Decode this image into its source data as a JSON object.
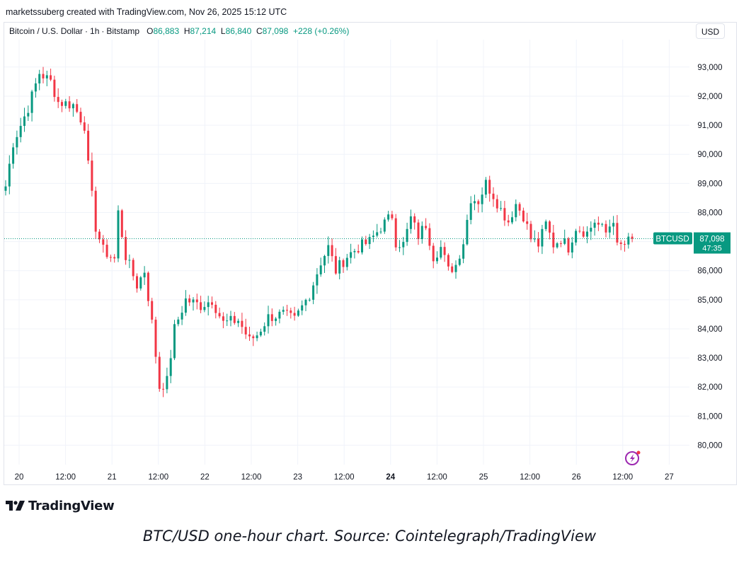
{
  "header": {
    "text": "marketssuberg created with TradingView.com, Nov 26, 2025 15:12 UTC"
  },
  "legend": {
    "symbol": "Bitcoin / U.S. Dollar",
    "interval": "1h",
    "exchange": "Bitstamp",
    "o_label": "O",
    "o_value": "86,883",
    "h_label": "H",
    "h_value": "87,214",
    "l_label": "L",
    "l_value": "86,840",
    "c_label": "C",
    "c_value": "87,098",
    "change": "+228 (+0.26%)"
  },
  "currency_button": "USD",
  "price_tag": {
    "symbol": "BTCUSD",
    "price": "87,098",
    "countdown": "47:35"
  },
  "logo_text": "TradingView",
  "caption": "BTC/USD one-hour chart. Source: Cointelegraph/TradingView",
  "colors": {
    "up": "#089981",
    "down": "#f23645",
    "grid": "#f0f3fa",
    "text": "#131722"
  },
  "chart_data": {
    "type": "candlestick",
    "interval": "1h",
    "y_ticks": [
      80000,
      81000,
      82000,
      83000,
      84000,
      85000,
      86000,
      87000,
      88000,
      89000,
      90000,
      91000,
      92000,
      93000
    ],
    "y_tick_labels": [
      "80,000",
      "81,000",
      "82,000",
      "83,000",
      "84,000",
      "85,000",
      "86,000",
      "87,000",
      "88,000",
      "89,000",
      "90,000",
      "91,000",
      "92,000",
      "93,000"
    ],
    "x_ticks": [
      {
        "label": "20",
        "bold": false
      },
      {
        "label": "12:00",
        "bold": false
      },
      {
        "label": "21",
        "bold": false
      },
      {
        "label": "12:00",
        "bold": false
      },
      {
        "label": "22",
        "bold": false
      },
      {
        "label": "12:00",
        "bold": false
      },
      {
        "label": "23",
        "bold": false
      },
      {
        "label": "12:00",
        "bold": false
      },
      {
        "label": "24",
        "bold": true
      },
      {
        "label": "12:00",
        "bold": false
      },
      {
        "label": "25",
        "bold": false
      },
      {
        "label": "12:00",
        "bold": false
      },
      {
        "label": "26",
        "bold": false
      },
      {
        "label": "12:00",
        "bold": false
      },
      {
        "label": "27",
        "bold": false
      }
    ],
    "last_price": 87098,
    "close_path": [
      [
        0,
        88900
      ],
      [
        2,
        90400
      ],
      [
        6,
        91600
      ],
      [
        9,
        92800
      ],
      [
        12,
        92500
      ],
      [
        14,
        91800
      ],
      [
        18,
        91700
      ],
      [
        21,
        91000
      ],
      [
        22,
        89600
      ],
      [
        24,
        87500
      ],
      [
        26,
        86700
      ],
      [
        29,
        86400
      ],
      [
        30,
        88000
      ],
      [
        32,
        86500
      ],
      [
        35,
        85500
      ],
      [
        37,
        86000
      ],
      [
        39,
        84200
      ],
      [
        41,
        82000
      ],
      [
        43,
        82200
      ],
      [
        45,
        84000
      ],
      [
        48,
        85000
      ],
      [
        52,
        84800
      ],
      [
        55,
        85000
      ],
      [
        58,
        84200
      ],
      [
        62,
        84300
      ],
      [
        65,
        83600
      ],
      [
        67,
        83800
      ],
      [
        70,
        84400
      ],
      [
        74,
        84500
      ],
      [
        77,
        84300
      ],
      [
        81,
        85200
      ],
      [
        84,
        86300
      ],
      [
        86,
        86800
      ],
      [
        88,
        86000
      ],
      [
        91,
        86500
      ],
      [
        94,
        86800
      ],
      [
        97,
        87000
      ],
      [
        100,
        87500
      ],
      [
        103,
        87900
      ],
      [
        104,
        87000
      ],
      [
        106,
        86900
      ],
      [
        108,
        87800
      ],
      [
        110,
        87200
      ],
      [
        112,
        87600
      ],
      [
        114,
        86500
      ],
      [
        116,
        86800
      ],
      [
        118,
        86000
      ],
      [
        120,
        86200
      ],
      [
        122,
        87000
      ],
      [
        124,
        88500
      ],
      [
        126,
        88400
      ],
      [
        128,
        89000
      ],
      [
        130,
        88600
      ],
      [
        132,
        88100
      ],
      [
        134,
        87700
      ],
      [
        136,
        88300
      ],
      [
        138,
        87900
      ],
      [
        140,
        87100
      ],
      [
        142,
        86900
      ],
      [
        144,
        87600
      ],
      [
        146,
        86900
      ],
      [
        148,
        87100
      ],
      [
        150,
        86800
      ],
      [
        152,
        87500
      ],
      [
        155,
        87300
      ],
      [
        157,
        87700
      ],
      [
        160,
        87300
      ],
      [
        162,
        87800
      ],
      [
        163,
        86800
      ],
      [
        165,
        86900
      ],
      [
        167,
        87098
      ]
    ]
  }
}
